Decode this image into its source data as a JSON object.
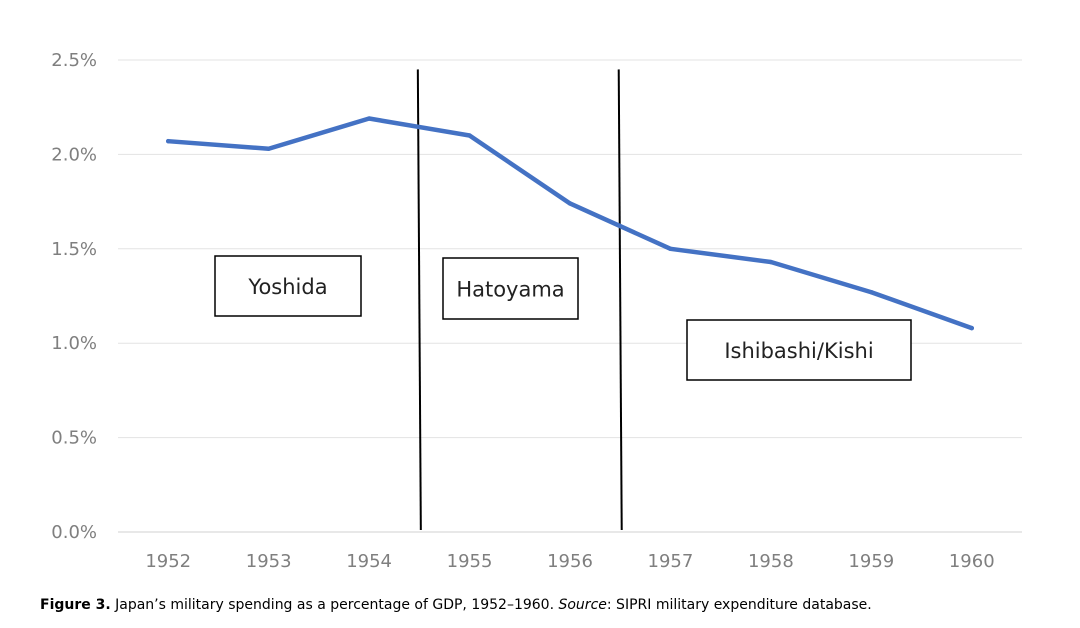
{
  "chart_data": {
    "type": "line",
    "x": [
      "1952",
      "1953",
      "1954",
      "1955",
      "1956",
      "1957",
      "1958",
      "1959",
      "1960"
    ],
    "series": [
      {
        "values": [
          2.07,
          2.03,
          2.19,
          2.1,
          1.74,
          1.5,
          1.43,
          1.27,
          1.08
        ]
      }
    ],
    "yticks": [
      "0.0%",
      "0.5%",
      "1.0%",
      "1.5%",
      "2.0%",
      "2.5%"
    ],
    "ylim": [
      0,
      2.5
    ],
    "grid": true,
    "line_color": "#4472c4",
    "dividers": [
      {
        "between": [
          "1954",
          "1955"
        ],
        "top_y": 2.45
      },
      {
        "between": [
          "1956",
          "1957"
        ],
        "top_y": 2.45
      }
    ],
    "annotations": [
      {
        "text": "Yoshida"
      },
      {
        "text": "Hatoyama"
      },
      {
        "text": "Ishibashi/Kishi"
      }
    ]
  },
  "caption": {
    "figure_label": "Figure 3.",
    "text_before_source": " Japan’s military spending as a percentage of GDP, 1952–1960. ",
    "source_label": "Source",
    "text_after_source": ": SIPRI military expenditure database."
  }
}
